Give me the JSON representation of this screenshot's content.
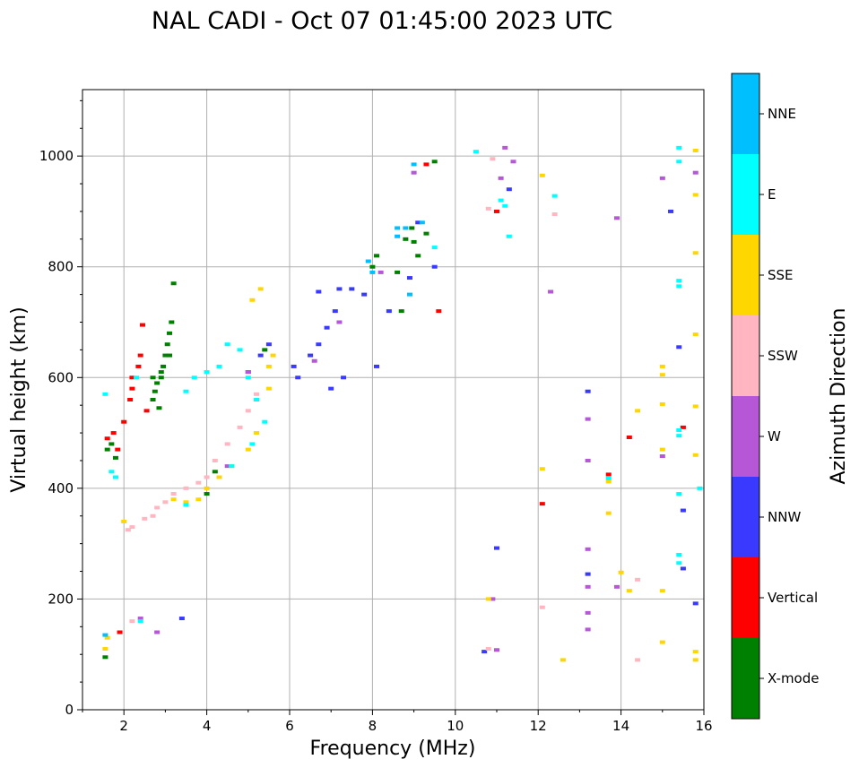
{
  "chart_data": {
    "type": "scatter",
    "title": "NAL CADI - Oct 07 01:45:00 2023 UTC",
    "xlabel": "Frequency (MHz)",
    "ylabel": "Virtual height (km)",
    "xlim": [
      1,
      16
    ],
    "ylim": [
      0,
      1120
    ],
    "xticks": [
      2,
      4,
      6,
      8,
      10,
      12,
      14,
      16
    ],
    "yticks": [
      0,
      200,
      400,
      600,
      800,
      1000
    ],
    "grid": true,
    "colorbar": {
      "label": "Azimuth Direction",
      "position": "right",
      "categories": [
        {
          "name": "X-mode",
          "color": "#008000"
        },
        {
          "name": "Vertical",
          "color": "#ff0000"
        },
        {
          "name": "NNW",
          "color": "#3a3aff"
        },
        {
          "name": "W",
          "color": "#b557d6"
        },
        {
          "name": "SSW",
          "color": "#ffb6c1"
        },
        {
          "name": "SSE",
          "color": "#ffd700"
        },
        {
          "name": "E",
          "color": "#00ffff"
        },
        {
          "name": "NNE",
          "color": "#00bfff"
        }
      ]
    },
    "series": [
      {
        "name": "X-mode",
        "points": [
          [
            1.55,
            95
          ],
          [
            1.6,
            470
          ],
          [
            1.7,
            480
          ],
          [
            1.8,
            455
          ],
          [
            2.7,
            560
          ],
          [
            2.75,
            575
          ],
          [
            2.8,
            590
          ],
          [
            2.9,
            600
          ],
          [
            2.95,
            620
          ],
          [
            3.0,
            640
          ],
          [
            3.05,
            660
          ],
          [
            3.1,
            680
          ],
          [
            3.15,
            700
          ],
          [
            3.2,
            770
          ],
          [
            3.1,
            640
          ],
          [
            2.85,
            545
          ],
          [
            2.9,
            610
          ],
          [
            2.7,
            600
          ],
          [
            4.0,
            390
          ],
          [
            4.2,
            430
          ],
          [
            5.4,
            650
          ],
          [
            8.0,
            800
          ],
          [
            8.1,
            820
          ],
          [
            8.6,
            790
          ],
          [
            8.8,
            850
          ],
          [
            9.0,
            845
          ],
          [
            9.1,
            820
          ],
          [
            9.3,
            860
          ],
          [
            9.5,
            990
          ],
          [
            8.7,
            720
          ],
          [
            8.95,
            870
          ]
        ]
      },
      {
        "name": "Vertical",
        "points": [
          [
            1.6,
            490
          ],
          [
            1.75,
            500
          ],
          [
            1.85,
            470
          ],
          [
            2.0,
            520
          ],
          [
            2.15,
            560
          ],
          [
            2.2,
            600
          ],
          [
            2.35,
            620
          ],
          [
            2.4,
            640
          ],
          [
            2.45,
            695
          ],
          [
            2.55,
            540
          ],
          [
            2.2,
            580
          ],
          [
            1.9,
            140
          ],
          [
            9.6,
            720
          ],
          [
            9.3,
            985
          ],
          [
            11.0,
            900
          ],
          [
            12.1,
            372
          ],
          [
            13.7,
            425
          ],
          [
            14.2,
            492
          ],
          [
            15.5,
            510
          ]
        ]
      },
      {
        "name": "NNW",
        "points": [
          [
            3.4,
            165
          ],
          [
            5.0,
            610
          ],
          [
            5.3,
            640
          ],
          [
            5.5,
            660
          ],
          [
            6.1,
            620
          ],
          [
            6.2,
            600
          ],
          [
            6.5,
            640
          ],
          [
            6.7,
            660
          ],
          [
            6.9,
            690
          ],
          [
            7.1,
            720
          ],
          [
            7.2,
            760
          ],
          [
            7.3,
            600
          ],
          [
            7.5,
            760
          ],
          [
            7.8,
            750
          ],
          [
            8.1,
            620
          ],
          [
            8.4,
            720
          ],
          [
            8.9,
            780
          ],
          [
            9.1,
            880
          ],
          [
            9.5,
            800
          ],
          [
            11.0,
            292
          ],
          [
            11.3,
            940
          ],
          [
            10.7,
            105
          ],
          [
            13.2,
            575
          ],
          [
            13.2,
            245
          ],
          [
            15.2,
            900
          ],
          [
            15.4,
            655
          ],
          [
            15.5,
            360
          ],
          [
            15.5,
            255
          ],
          [
            15.8,
            192
          ],
          [
            6.7,
            755
          ],
          [
            7.0,
            580
          ]
        ]
      },
      {
        "name": "W",
        "points": [
          [
            2.4,
            165
          ],
          [
            2.8,
            140
          ],
          [
            4.5,
            440
          ],
          [
            5.0,
            610
          ],
          [
            6.6,
            630
          ],
          [
            7.2,
            700
          ],
          [
            8.2,
            790
          ],
          [
            9.0,
            970
          ],
          [
            10.9,
            200
          ],
          [
            11.1,
            960
          ],
          [
            11.2,
            1015
          ],
          [
            11.4,
            990
          ],
          [
            12.3,
            755
          ],
          [
            13.2,
            525
          ],
          [
            13.2,
            450
          ],
          [
            13.2,
            290
          ],
          [
            13.2,
            222
          ],
          [
            13.2,
            175
          ],
          [
            13.2,
            145
          ],
          [
            13.9,
            888
          ],
          [
            13.9,
            222
          ],
          [
            15.0,
            960
          ],
          [
            15.0,
            458
          ],
          [
            15.8,
            970
          ],
          [
            11.0,
            108
          ]
        ]
      },
      {
        "name": "SSW",
        "points": [
          [
            2.1,
            325
          ],
          [
            2.2,
            330
          ],
          [
            2.5,
            345
          ],
          [
            2.7,
            350
          ],
          [
            2.8,
            365
          ],
          [
            3.0,
            375
          ],
          [
            3.2,
            390
          ],
          [
            3.5,
            400
          ],
          [
            3.8,
            410
          ],
          [
            4.0,
            420
          ],
          [
            4.2,
            450
          ],
          [
            4.5,
            480
          ],
          [
            4.8,
            510
          ],
          [
            5.0,
            540
          ],
          [
            5.2,
            570
          ],
          [
            2.2,
            160
          ],
          [
            10.8,
            905
          ],
          [
            10.9,
            995
          ],
          [
            12.4,
            895
          ],
          [
            12.1,
            185
          ],
          [
            14.4,
            235
          ],
          [
            14.4,
            90
          ],
          [
            10.8,
            110
          ]
        ]
      },
      {
        "name": "SSE",
        "points": [
          [
            1.55,
            110
          ],
          [
            1.6,
            130
          ],
          [
            2.0,
            340
          ],
          [
            3.2,
            380
          ],
          [
            3.5,
            375
          ],
          [
            3.8,
            380
          ],
          [
            4.0,
            400
          ],
          [
            4.3,
            420
          ],
          [
            4.6,
            440
          ],
          [
            5.0,
            470
          ],
          [
            5.2,
            500
          ],
          [
            5.5,
            620
          ],
          [
            5.6,
            640
          ],
          [
            5.1,
            740
          ],
          [
            5.3,
            760
          ],
          [
            5.5,
            580
          ],
          [
            10.8,
            200
          ],
          [
            12.1,
            965
          ],
          [
            12.1,
            435
          ],
          [
            12.6,
            90
          ],
          [
            13.7,
            412
          ],
          [
            13.7,
            355
          ],
          [
            14.0,
            248
          ],
          [
            14.2,
            215
          ],
          [
            14.4,
            540
          ],
          [
            15.0,
            620
          ],
          [
            15.0,
            605
          ],
          [
            15.0,
            552
          ],
          [
            15.0,
            470
          ],
          [
            15.0,
            215
          ],
          [
            15.0,
            122
          ],
          [
            15.8,
            1010
          ],
          [
            15.8,
            930
          ],
          [
            15.8,
            825
          ],
          [
            15.8,
            678
          ],
          [
            15.8,
            548
          ],
          [
            15.8,
            460
          ],
          [
            15.8,
            105
          ],
          [
            15.8,
            90
          ]
        ]
      },
      {
        "name": "E",
        "points": [
          [
            1.55,
            570
          ],
          [
            1.7,
            430
          ],
          [
            1.8,
            420
          ],
          [
            2.3,
            600
          ],
          [
            2.4,
            160
          ],
          [
            3.5,
            575
          ],
          [
            3.7,
            600
          ],
          [
            4.0,
            610
          ],
          [
            4.3,
            620
          ],
          [
            4.5,
            660
          ],
          [
            4.8,
            650
          ],
          [
            5.0,
            600
          ],
          [
            5.2,
            560
          ],
          [
            5.4,
            520
          ],
          [
            5.1,
            480
          ],
          [
            4.6,
            440
          ],
          [
            3.5,
            370
          ],
          [
            9.5,
            835
          ],
          [
            10.5,
            1008
          ],
          [
            11.2,
            910
          ],
          [
            11.3,
            855
          ],
          [
            12.4,
            928
          ],
          [
            13.7,
            418
          ],
          [
            15.4,
            1015
          ],
          [
            15.4,
            990
          ],
          [
            15.4,
            775
          ],
          [
            15.4,
            765
          ],
          [
            15.4,
            505
          ],
          [
            15.4,
            495
          ],
          [
            15.4,
            390
          ],
          [
            15.4,
            280
          ],
          [
            15.4,
            265
          ],
          [
            15.9,
            400
          ],
          [
            11.1,
            920
          ]
        ]
      },
      {
        "name": "NNE",
        "points": [
          [
            1.55,
            135
          ],
          [
            7.9,
            810
          ],
          [
            8.0,
            790
          ],
          [
            8.6,
            870
          ],
          [
            8.8,
            870
          ],
          [
            9.0,
            985
          ],
          [
            9.2,
            880
          ],
          [
            8.9,
            750
          ],
          [
            8.6,
            855
          ]
        ]
      }
    ]
  }
}
